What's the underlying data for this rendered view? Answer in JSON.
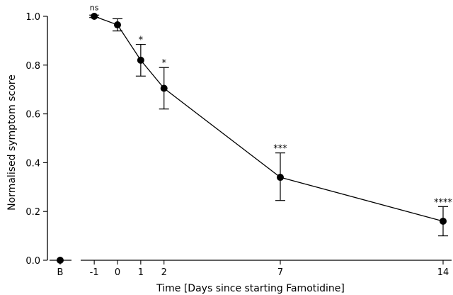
{
  "chart_data": {
    "type": "line",
    "xlabel": "Time [Days since starting Famotidine]",
    "ylabel": "Normalised symptom score",
    "ylim": [
      0.0,
      1.0
    ],
    "yticks": [
      "0.0",
      "0.2",
      "0.4",
      "0.6",
      "0.8",
      "1.0"
    ],
    "baseline": {
      "label": "B",
      "y": 0.0
    },
    "series": [
      {
        "x": [
          -1,
          0,
          1,
          2,
          7,
          14
        ],
        "y": [
          1.0,
          0.965,
          0.82,
          0.705,
          0.34,
          0.16
        ],
        "err_low": [
          0.995,
          0.94,
          0.755,
          0.62,
          0.245,
          0.1
        ],
        "err_high": [
          1.005,
          0.99,
          0.885,
          0.79,
          0.44,
          0.22
        ],
        "sig": [
          "ns",
          "",
          "*",
          "*",
          "***",
          "****"
        ]
      }
    ],
    "xticks": [
      "-1",
      "0",
      "1",
      "2",
      "7",
      "14"
    ],
    "grid": false,
    "legend": "none"
  }
}
